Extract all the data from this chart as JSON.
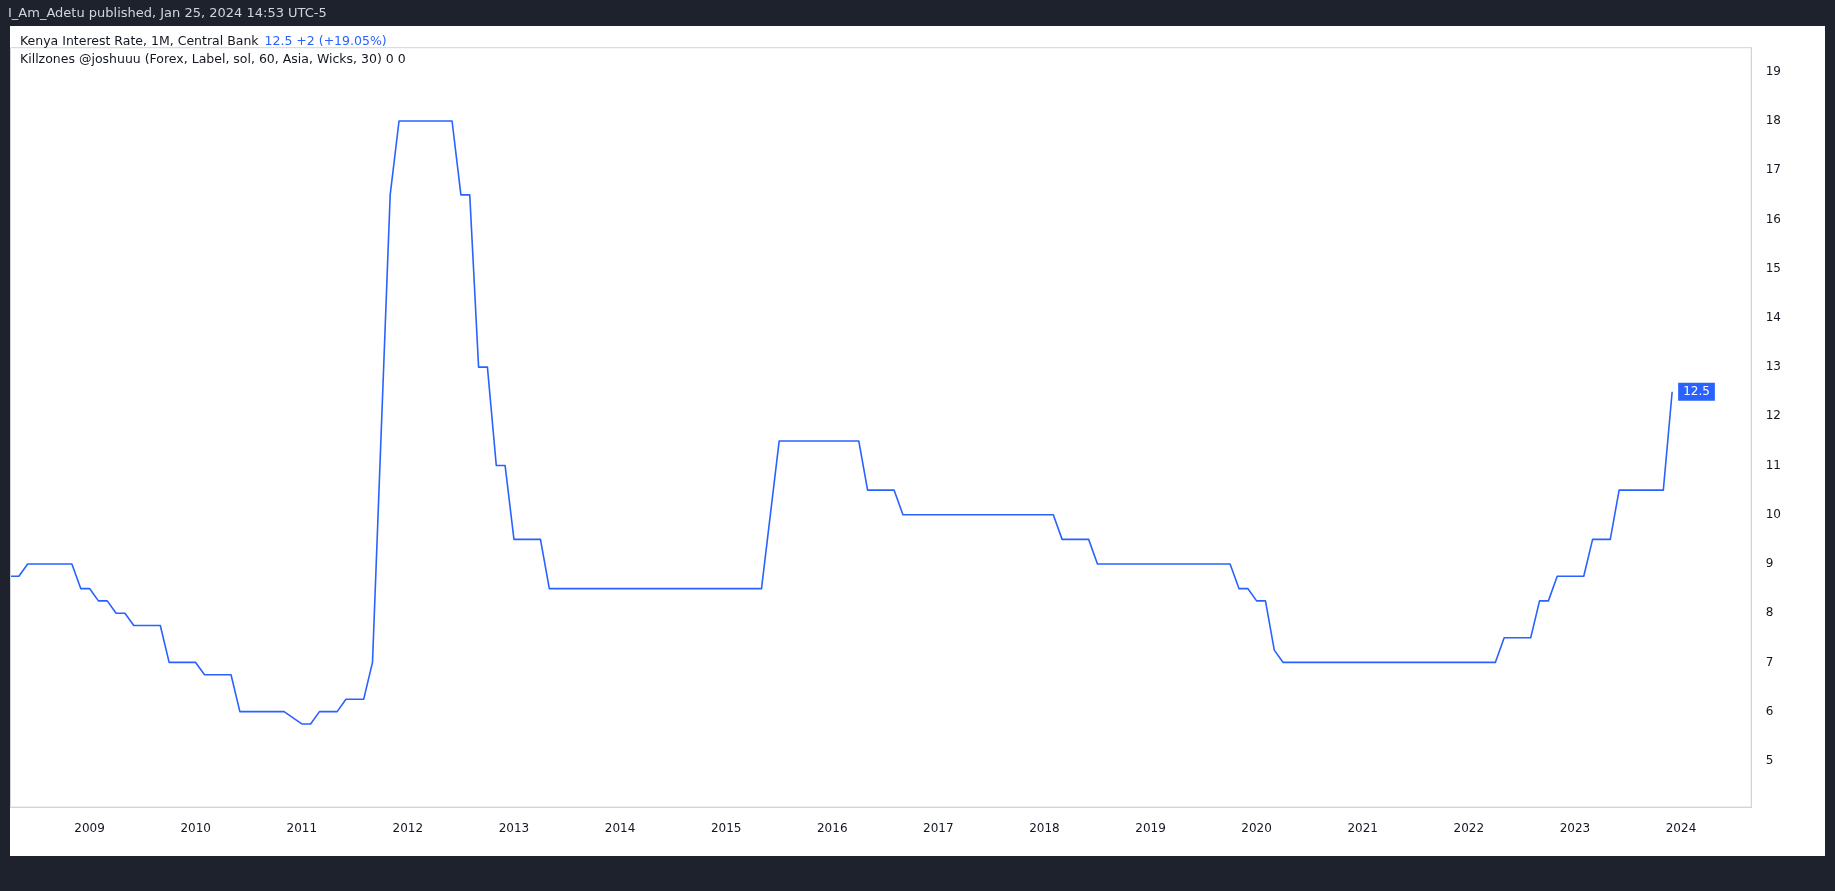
{
  "chart_data": {
    "type": "line",
    "title": "Kenya Interest Rate, 1M, Central Bank",
    "annotations": [
      "I_Am_Adetu published, Jan 25, 2024 14:53 UTC-5",
      "12.5  +2 (+19.05%)",
      "Killzones @joshuuu (Forex, Label, sol, 60, Asia, Wicks, 30)  0  0"
    ],
    "x": [
      "2008-04",
      "2008-05",
      "2008-06",
      "2008-11",
      "2008-12",
      "2009-01",
      "2009-02",
      "2009-03",
      "2009-04",
      "2009-05",
      "2009-06",
      "2009-09",
      "2009-10",
      "2010-01",
      "2010-02",
      "2010-05",
      "2010-06",
      "2010-11",
      "2011-01",
      "2011-02",
      "2011-03",
      "2011-05",
      "2011-06",
      "2011-08",
      "2011-09",
      "2011-11",
      "2011-12",
      "2012-06",
      "2012-07",
      "2012-08",
      "2012-09",
      "2012-10",
      "2012-11",
      "2012-12",
      "2013-01",
      "2013-04",
      "2013-05",
      "2015-05",
      "2015-07",
      "2016-04",
      "2016-05",
      "2016-08",
      "2016-09",
      "2018-02",
      "2018-03",
      "2018-06",
      "2018-07",
      "2019-10",
      "2019-11",
      "2019-12",
      "2020-01",
      "2020-02",
      "2020-03",
      "2020-04",
      "2022-04",
      "2022-05",
      "2022-08",
      "2022-09",
      "2022-10",
      "2022-11",
      "2023-02",
      "2023-03",
      "2023-05",
      "2023-06",
      "2023-11",
      "2023-12"
    ],
    "series": [
      {
        "color": "#2962ff",
        "values": [
          8.75,
          8.75,
          9,
          9,
          8.5,
          8.5,
          8.25,
          8.25,
          8,
          8,
          7.75,
          7.75,
          7,
          7,
          6.75,
          6.75,
          6,
          6,
          5.75,
          5.75,
          6,
          6,
          6.25,
          6.25,
          7,
          16.5,
          18,
          18,
          16.5,
          16.5,
          13,
          13,
          11,
          11,
          9.5,
          9.5,
          8.5,
          8.5,
          11.5,
          11.5,
          10.5,
          10.5,
          10,
          10,
          9.5,
          9.5,
          9,
          9,
          8.5,
          8.5,
          8.25,
          8.25,
          7.25,
          7,
          7,
          7.5,
          7.5,
          8.25,
          8.25,
          8.75,
          8.75,
          9.5,
          9.5,
          10.5,
          10.5,
          12.5
        ],
        "value_labels": [
          null,
          null,
          null,
          null,
          null,
          null,
          null,
          null,
          null,
          null,
          null,
          null,
          null,
          null,
          null,
          null,
          null,
          null,
          null,
          null,
          null,
          null,
          null,
          null,
          null,
          null,
          null,
          null,
          null,
          null,
          null,
          null,
          null,
          null,
          null,
          null,
          null,
          null,
          null,
          null,
          null,
          null,
          null,
          null,
          null,
          null,
          null,
          null,
          null,
          null,
          null,
          null,
          null,
          null,
          null,
          null,
          null,
          null,
          null,
          null,
          null,
          null,
          null,
          null,
          null,
          "12.5"
        ]
      }
    ],
    "xlim": [
      "2008-04",
      "2024-09"
    ],
    "xticks": [
      "2009",
      "2010",
      "2011",
      "2012",
      "2013",
      "2014",
      "2015",
      "2016",
      "2017",
      "2018",
      "2019",
      "2020",
      "2021",
      "2022",
      "2023",
      "2024"
    ],
    "ylim": [
      4.05,
      19.5
    ],
    "yticks": [
      5,
      6,
      7,
      8,
      9,
      10,
      11,
      12,
      13,
      14,
      15,
      16,
      17,
      18,
      19
    ],
    "grid": false,
    "legend": false,
    "marker": "none",
    "line_style": "solid"
  }
}
